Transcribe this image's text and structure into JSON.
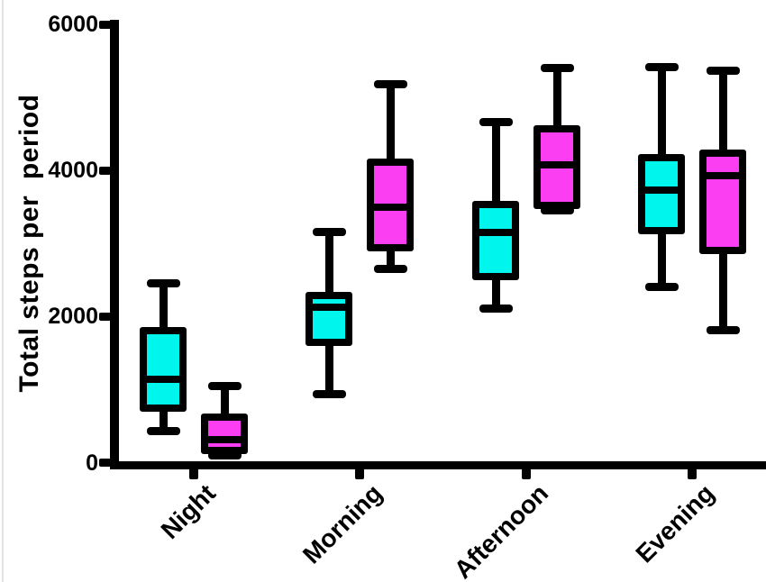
{
  "figure": {
    "background": "#ffffff",
    "axis_color": "#000000"
  },
  "chart_data": {
    "type": "box",
    "title": "",
    "ylabel": "Total steps per  period",
    "xlabel": "",
    "categories": [
      "Night",
      "Morning",
      "Afternoon",
      "Evening"
    ],
    "y_ticks": [
      6000,
      4000,
      2000,
      0
    ],
    "ylim": [
      0,
      6000
    ],
    "grid": false,
    "legend": "none",
    "whisker_style": "min-max",
    "series": [
      {
        "name": "cyan-series",
        "color": "#00F6EC",
        "outline": "#000000",
        "boxes": [
          {
            "category": "Night",
            "min": 430,
            "q1": 740,
            "median": 1140,
            "q3": 1810,
            "max": 2460
          },
          {
            "category": "Morning",
            "min": 940,
            "q1": 1650,
            "median": 2130,
            "q3": 2290,
            "max": 3160
          },
          {
            "category": "Afternoon",
            "min": 2110,
            "q1": 2550,
            "median": 3150,
            "q3": 3530,
            "max": 4660
          },
          {
            "category": "Evening",
            "min": 2400,
            "q1": 3180,
            "median": 3730,
            "q3": 4180,
            "max": 5410
          }
        ]
      },
      {
        "name": "magenta-series",
        "color": "#FB3EF2",
        "outline": "#000000",
        "boxes": [
          {
            "category": "Night",
            "min": 100,
            "q1": 170,
            "median": 310,
            "q3": 620,
            "max": 1050
          },
          {
            "category": "Morning",
            "min": 2650,
            "q1": 2940,
            "median": 3500,
            "q3": 4110,
            "max": 5180
          },
          {
            "category": "Afternoon",
            "min": 3450,
            "q1": 3520,
            "median": 4080,
            "q3": 4570,
            "max": 5400
          },
          {
            "category": "Evening",
            "min": 1810,
            "q1": 2900,
            "median": 3930,
            "q3": 4240,
            "max": 5370
          }
        ]
      }
    ]
  }
}
